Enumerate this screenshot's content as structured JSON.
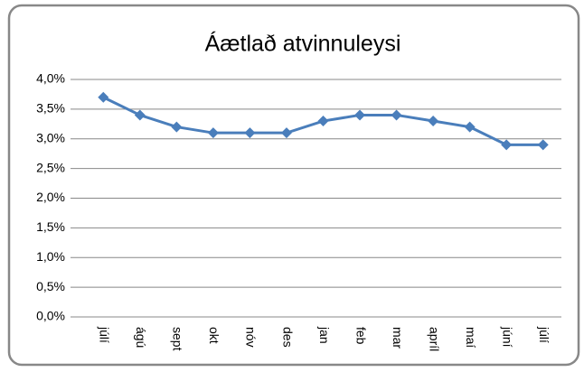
{
  "chart_data": {
    "type": "line",
    "title": "Áætlað atvinnuleysi",
    "categories": [
      "júlí",
      "ágú",
      "sept",
      "okt",
      "nóv",
      "des",
      "jan",
      "feb",
      "mar",
      "apríl",
      "maí",
      "júní",
      "júlí"
    ],
    "series": [
      {
        "name": "Áætlað atvinnuleysi",
        "color": "#4a7ebb",
        "values": [
          3.7,
          3.4,
          3.2,
          3.1,
          3.1,
          3.1,
          3.3,
          3.4,
          3.4,
          3.3,
          3.2,
          2.9,
          2.9
        ]
      }
    ],
    "ylim": [
      0,
      4
    ],
    "yticks": [
      {
        "value": 0,
        "label": "0,0%"
      },
      {
        "value": 0.5,
        "label": "0,5%"
      },
      {
        "value": 1,
        "label": "1,0%"
      },
      {
        "value": 1.5,
        "label": "1,5%"
      },
      {
        "value": 2,
        "label": "2,0%"
      },
      {
        "value": 2.5,
        "label": "2,5%"
      },
      {
        "value": 3,
        "label": "3,0%"
      },
      {
        "value": 3.5,
        "label": "3,5%"
      },
      {
        "value": 4,
        "label": "4,0%"
      }
    ],
    "grid": true
  }
}
